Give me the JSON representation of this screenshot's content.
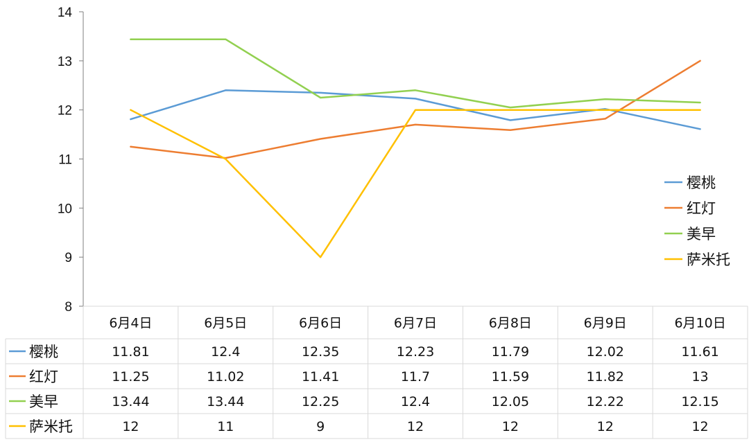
{
  "chart_data": {
    "type": "line",
    "title": "",
    "xlabel": "",
    "ylabel": "",
    "categories": [
      "6月4日",
      "6月5日",
      "6月6日",
      "6月7日",
      "6月8日",
      "6月9日",
      "6月10日"
    ],
    "ylim": [
      8,
      14
    ],
    "yticks": [
      "8",
      "9",
      "10",
      "11",
      "12",
      "13",
      "14"
    ],
    "grid": false,
    "legend_position": "right",
    "data_table": true,
    "series": [
      {
        "name": "樱桃",
        "color": "#5B9BD5",
        "values": [
          11.81,
          12.4,
          12.35,
          12.23,
          11.79,
          12.02,
          11.61
        ],
        "cells": [
          "11.81",
          "12.4",
          "12.35",
          "12.23",
          "11.79",
          "12.02",
          "11.61"
        ]
      },
      {
        "name": "红灯",
        "color": "#ED7D31",
        "values": [
          11.25,
          11.02,
          11.41,
          11.7,
          11.59,
          11.82,
          13
        ],
        "cells": [
          "11.25",
          "11.02",
          "11.41",
          "11.7",
          "11.59",
          "11.82",
          "13"
        ]
      },
      {
        "name": "美早",
        "color": "#92D050",
        "values": [
          13.44,
          13.44,
          12.25,
          12.4,
          12.05,
          12.22,
          12.15
        ],
        "cells": [
          "13.44",
          "13.44",
          "12.25",
          "12.4",
          "12.05",
          "12.22",
          "12.15"
        ]
      },
      {
        "name": "萨米托",
        "color": "#FFC000",
        "values": [
          12,
          11,
          9,
          12,
          12,
          12,
          12
        ],
        "cells": [
          "12",
          "11",
          "9",
          "12",
          "12",
          "12",
          "12"
        ]
      }
    ]
  }
}
